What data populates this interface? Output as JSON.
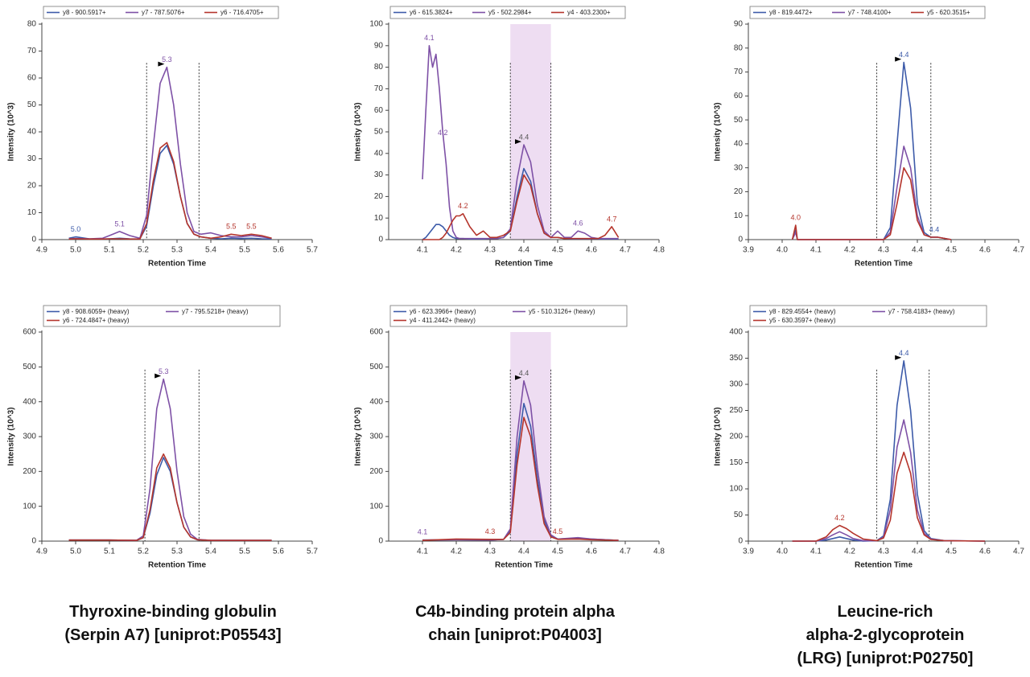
{
  "chart_data": [
    {
      "type": "line",
      "xlabel": "Retention Time",
      "ylabel": "Intensity (10^3)",
      "xlim": [
        4.9,
        5.7
      ],
      "xticks": [
        4.9,
        {
          "value": 5,
          "label": "5.0"
        },
        5.1,
        5.2,
        5.3,
        5.4,
        5.5,
        5.6,
        5.7
      ],
      "ylim": [
        0,
        80
      ],
      "yticks": [
        0,
        10,
        20,
        30,
        40,
        50,
        60,
        70,
        80
      ],
      "boundaries": [
        5.21,
        5.365
      ],
      "x": [
        4.98,
        5.0,
        5.04,
        5.08,
        5.1,
        5.13,
        5.16,
        5.19,
        5.21,
        5.23,
        5.25,
        5.27,
        5.29,
        5.31,
        5.33,
        5.35,
        5.37,
        5.4,
        5.43,
        5.46,
        5.49,
        5.52,
        5.55,
        5.58
      ],
      "series": [
        {
          "name": "y8 - 900.5917+",
          "color": "#3d5ba9",
          "values": [
            0.5,
            1,
            0.3,
            0.2,
            0.3,
            0.5,
            0.3,
            0.2,
            5,
            20,
            32,
            35,
            28,
            16,
            6,
            2,
            1,
            0.5,
            0.3,
            0.5,
            0.4,
            0.5,
            0.3,
            0.2
          ]
        },
        {
          "name": "y7 - 787.5076+",
          "color": "#7e51a6",
          "values": [
            0.3,
            0.4,
            0.3,
            0.5,
            1.5,
            3,
            1.5,
            0.5,
            9,
            35,
            58,
            64,
            50,
            28,
            10,
            3,
            2,
            2.5,
            1.5,
            1,
            1,
            1.5,
            1,
            0.5
          ]
        },
        {
          "name": "y6 - 716.4705+",
          "color": "#b5352c",
          "values": [
            0.2,
            0.3,
            0.2,
            0.2,
            0.3,
            0.3,
            0.2,
            0.2,
            6,
            22,
            34,
            36,
            29,
            16,
            6,
            2,
            1,
            0.5,
            1,
            2,
            1.5,
            2,
            1.5,
            0.5
          ]
        }
      ],
      "annotations": [
        {
          "label": "5.0",
          "x": 5.0,
          "y": 1,
          "color": "#3d5ba9"
        },
        {
          "label": "5.1",
          "x": 5.13,
          "y": 3,
          "color": "#7e51a6"
        },
        {
          "label": "5.3",
          "x": 5.27,
          "y": 64,
          "color": "#7e51a6",
          "arrow": true
        },
        {
          "label": "5.5",
          "x": 5.46,
          "y": 2,
          "color": "#b5352c"
        },
        {
          "label": "5.5",
          "x": 5.52,
          "y": 2,
          "color": "#b5352c"
        }
      ]
    },
    {
      "type": "line",
      "xlabel": "Retention Time",
      "ylabel": "Intensity (10^3)",
      "xlim": [
        4.0,
        4.8
      ],
      "xticks": [
        4.1,
        4.2,
        4.3,
        4.4,
        4.5,
        4.6,
        4.7,
        4.8
      ],
      "ylim": [
        0,
        100
      ],
      "yticks": [
        0,
        10,
        20,
        30,
        40,
        50,
        60,
        70,
        80,
        90,
        100
      ],
      "highlight": [
        4.36,
        4.48
      ],
      "boundaries": [
        4.36,
        4.48
      ],
      "x": [
        4.1,
        4.11,
        4.12,
        4.13,
        4.14,
        4.15,
        4.16,
        4.17,
        4.18,
        4.19,
        4.2,
        4.21,
        4.22,
        4.24,
        4.26,
        4.28,
        4.3,
        4.32,
        4.34,
        4.36,
        4.38,
        4.4,
        4.42,
        4.44,
        4.46,
        4.48,
        4.5,
        4.52,
        4.54,
        4.56,
        4.58,
        4.6,
        4.62,
        4.64,
        4.66,
        4.68
      ],
      "series": [
        {
          "name": "y6 - 615.3824+",
          "color": "#3d5ba9",
          "values": [
            0,
            1,
            3,
            5,
            7,
            7,
            6,
            4,
            2,
            1,
            0.5,
            0.5,
            0.5,
            0.3,
            0.3,
            0.3,
            0.5,
            0.5,
            1,
            4,
            20,
            33,
            27,
            12,
            3,
            1,
            1,
            0.5,
            0.3,
            0.3,
            0.3,
            0.3,
            0.3,
            0.3,
            0.3,
            0.3
          ]
        },
        {
          "name": "y5 - 502.2984+",
          "color": "#7e51a6",
          "values": [
            28,
            60,
            90,
            80,
            86,
            70,
            50,
            35,
            15,
            4,
            1,
            0.5,
            0.5,
            0.5,
            0.5,
            0.5,
            0.5,
            0.5,
            1,
            5,
            28,
            44,
            36,
            16,
            4,
            1,
            4,
            1,
            1,
            4,
            3,
            1,
            0.5,
            0.5,
            0.5,
            0.5
          ]
        },
        {
          "name": "y4 - 403.2300+",
          "color": "#b5352c",
          "values": [
            0,
            0,
            0,
            0,
            0,
            0,
            1,
            3,
            6,
            9,
            11,
            11,
            12,
            6,
            2,
            4,
            1,
            1,
            2,
            4,
            18,
            30,
            25,
            12,
            3,
            1,
            1,
            0.5,
            0.5,
            0.5,
            0.5,
            0.5,
            0.5,
            2,
            6,
            1
          ]
        }
      ],
      "annotations": [
        {
          "label": "4.1",
          "x": 4.12,
          "y": 90,
          "color": "#7e51a6"
        },
        {
          "label": "4.2",
          "x": 4.16,
          "y": 46,
          "color": "#7e51a6"
        },
        {
          "label": "4.2",
          "x": 4.22,
          "y": 12,
          "color": "#b5352c"
        },
        {
          "label": "4.4",
          "x": 4.4,
          "y": 44,
          "color": "#555555",
          "arrow": true
        },
        {
          "label": "4.6",
          "x": 4.56,
          "y": 4,
          "color": "#7e51a6"
        },
        {
          "label": "4.7",
          "x": 4.66,
          "y": 6,
          "color": "#b5352c"
        }
      ]
    },
    {
      "type": "line",
      "xlabel": "Retention Time",
      "ylabel": "Intensity (10^3)",
      "xlim": [
        3.9,
        4.7
      ],
      "xticks": [
        3.9,
        {
          "value": 4,
          "label": "4.0"
        },
        4.1,
        4.2,
        4.3,
        4.4,
        4.5,
        4.6,
        4.7
      ],
      "ylim": [
        0,
        90
      ],
      "yticks": [
        0,
        10,
        20,
        30,
        40,
        50,
        60,
        70,
        80,
        90
      ],
      "boundaries": [
        4.28,
        4.44
      ],
      "x": [
        4.03,
        4.04,
        4.045,
        4.05,
        4.1,
        4.2,
        4.28,
        4.3,
        4.32,
        4.34,
        4.36,
        4.38,
        4.4,
        4.42,
        4.44,
        4.46,
        4.48,
        4.5
      ],
      "series": [
        {
          "name": "y8 - 819.4472+",
          "color": "#3d5ba9",
          "values": [
            0,
            4,
            0,
            0,
            0,
            0,
            0,
            0,
            5,
            40,
            74,
            55,
            15,
            3,
            1,
            1,
            0.5,
            0
          ]
        },
        {
          "name": "y7 - 748.4100+",
          "color": "#7e51a6",
          "values": [
            0,
            3,
            0,
            0,
            0,
            0,
            0,
            0,
            3,
            22,
            39,
            30,
            10,
            2,
            1,
            1,
            0.5,
            0
          ]
        },
        {
          "name": "y5 - 620.3515+",
          "color": "#b5352c",
          "values": [
            0,
            6,
            0,
            0,
            0,
            0,
            0,
            0,
            2,
            15,
            30,
            25,
            8,
            2,
            1,
            1,
            0.5,
            0
          ]
        }
      ],
      "annotations": [
        {
          "label": "4.0",
          "x": 4.04,
          "y": 6,
          "color": "#b5352c"
        },
        {
          "label": "4.4",
          "x": 4.36,
          "y": 74,
          "color": "#3d5ba9",
          "arrow": true
        },
        {
          "label": "4.4",
          "x": 4.45,
          "y": 1,
          "color": "#3d5ba9"
        }
      ]
    },
    {
      "type": "line",
      "xlabel": "Retention Time",
      "ylabel": "Intensity (10^3)",
      "xlim": [
        4.9,
        5.7
      ],
      "xticks": [
        4.9,
        {
          "value": 5,
          "label": "5.0"
        },
        5.1,
        5.2,
        5.3,
        5.4,
        5.5,
        5.6,
        5.7
      ],
      "ylim": [
        0,
        600
      ],
      "yticks": [
        0,
        100,
        200,
        300,
        400,
        500,
        600
      ],
      "boundaries": [
        5.205,
        5.365
      ],
      "x": [
        4.98,
        5.1,
        5.18,
        5.2,
        5.22,
        5.24,
        5.26,
        5.28,
        5.3,
        5.32,
        5.34,
        5.36,
        5.4,
        5.5,
        5.58
      ],
      "series": [
        {
          "name": "y8 - 908.6059+ (heavy)",
          "color": "#3d5ba9",
          "values": [
            3,
            3,
            2,
            10,
            80,
            190,
            240,
            200,
            110,
            40,
            12,
            4,
            2,
            2,
            2
          ]
        },
        {
          "name": "y7 - 795.5218+ (heavy)",
          "color": "#7e51a6",
          "values": [
            3,
            3,
            2,
            15,
            150,
            380,
            465,
            380,
            200,
            70,
            20,
            5,
            2,
            2,
            2
          ]
        },
        {
          "name": "y6 - 724.4847+ (heavy)",
          "color": "#b5352c",
          "values": [
            3,
            3,
            2,
            10,
            90,
            210,
            250,
            210,
            110,
            40,
            12,
            4,
            2,
            2,
            2
          ]
        }
      ],
      "annotations": [
        {
          "label": "5.3",
          "x": 5.26,
          "y": 465,
          "color": "#7e51a6",
          "arrow": true
        }
      ]
    },
    {
      "type": "line",
      "xlabel": "Retention Time",
      "ylabel": "Intensity (10^3)",
      "xlim": [
        4.0,
        4.8
      ],
      "xticks": [
        4.1,
        4.2,
        4.3,
        4.4,
        4.5,
        4.6,
        4.7,
        4.8
      ],
      "ylim": [
        0,
        600
      ],
      "yticks": [
        0,
        100,
        200,
        300,
        400,
        500,
        600
      ],
      "highlight": [
        4.36,
        4.48
      ],
      "boundaries": [
        4.36,
        4.48
      ],
      "x": [
        4.1,
        4.2,
        4.3,
        4.34,
        4.36,
        4.38,
        4.4,
        4.42,
        4.44,
        4.46,
        4.48,
        4.5,
        4.56,
        4.6,
        4.68
      ],
      "series": [
        {
          "name": "y6 - 623.3966+ (heavy)",
          "color": "#3d5ba9",
          "values": [
            3,
            4,
            3,
            5,
            30,
            250,
            395,
            330,
            180,
            60,
            15,
            6,
            8,
            6,
            2
          ]
        },
        {
          "name": "y5 - 510.3126+ (heavy)",
          "color": "#7e51a6",
          "values": [
            3,
            4,
            3,
            5,
            35,
            300,
            460,
            390,
            210,
            70,
            18,
            6,
            10,
            6,
            2
          ]
        },
        {
          "name": "y4 - 411.2442+ (heavy)",
          "color": "#b5352c",
          "values": [
            2,
            6,
            5,
            5,
            25,
            220,
            355,
            300,
            160,
            50,
            12,
            5,
            6,
            4,
            2
          ]
        }
      ],
      "annotations": [
        {
          "label": "4.1",
          "x": 4.1,
          "y": 4,
          "color": "#7e51a6"
        },
        {
          "label": "4.3",
          "x": 4.3,
          "y": 5,
          "color": "#b5352c"
        },
        {
          "label": "4.4",
          "x": 4.4,
          "y": 460,
          "color": "#555555",
          "arrow": true
        },
        {
          "label": "4.5",
          "x": 4.5,
          "y": 6,
          "color": "#b5352c"
        }
      ]
    },
    {
      "type": "line",
      "xlabel": "Retention Time",
      "ylabel": "Intensity (10^3)",
      "xlim": [
        3.9,
        4.7
      ],
      "xticks": [
        3.9,
        {
          "value": 4,
          "label": "4.0"
        },
        4.1,
        4.2,
        4.3,
        4.4,
        4.5,
        4.6,
        4.7
      ],
      "ylim": [
        0,
        400
      ],
      "yticks": [
        0,
        50,
        100,
        150,
        200,
        250,
        300,
        350,
        400
      ],
      "boundaries": [
        4.28,
        4.435
      ],
      "x": [
        4.03,
        4.1,
        4.13,
        4.15,
        4.17,
        4.19,
        4.21,
        4.24,
        4.28,
        4.3,
        4.32,
        4.34,
        4.36,
        4.38,
        4.4,
        4.42,
        4.44,
        4.48,
        4.6
      ],
      "series": [
        {
          "name": "y8 - 829.4554+ (heavy)",
          "color": "#3d5ba9",
          "values": [
            0,
            0,
            2,
            5,
            8,
            5,
            2,
            0,
            1,
            10,
            80,
            260,
            345,
            250,
            90,
            20,
            5,
            1,
            0
          ]
        },
        {
          "name": "y7 - 758.4183+ (heavy)",
          "color": "#7e51a6",
          "values": [
            0,
            0,
            5,
            12,
            18,
            12,
            5,
            1,
            1,
            8,
            60,
            180,
            232,
            170,
            60,
            15,
            4,
            1,
            0
          ]
        },
        {
          "name": "y5 - 630.3597+ (heavy)",
          "color": "#b5352c",
          "values": [
            0,
            0,
            8,
            22,
            30,
            24,
            15,
            4,
            1,
            6,
            40,
            130,
            170,
            130,
            45,
            12,
            3,
            1,
            0
          ]
        }
      ],
      "annotations": [
        {
          "label": "4.2",
          "x": 4.17,
          "y": 30,
          "color": "#b5352c"
        },
        {
          "label": "4.4",
          "x": 4.36,
          "y": 345,
          "color": "#3d5ba9",
          "arrow": true
        }
      ]
    }
  ],
  "captions": [
    [
      "Thyroxine-binding globulin",
      "(Serpin A7) [uniprot:P05543]"
    ],
    [
      "C4b-binding protein alpha",
      "chain [uniprot:P04003]"
    ],
    [
      "Leucine-rich",
      "alpha-2-glycoprotein",
      "(LRG) [uniprot:P02750]"
    ]
  ]
}
